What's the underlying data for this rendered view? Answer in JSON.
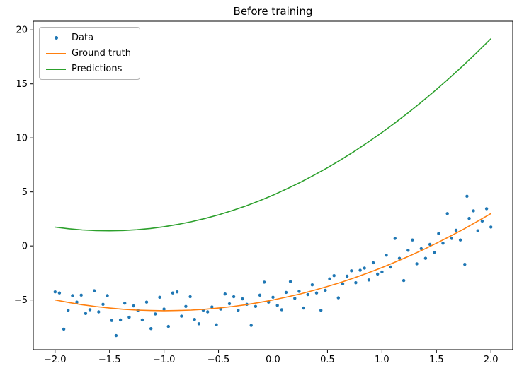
{
  "chart_data": {
    "type": "scatter",
    "title": "Before training",
    "xlabel": "",
    "ylabel": "",
    "xlim": [
      -2.2,
      2.2
    ],
    "ylim": [
      -9.6,
      20.8
    ],
    "grid": false,
    "legend_position": "upper left",
    "xticks": {
      "values": [
        -2.0,
        -1.5,
        -1.0,
        -0.5,
        0.0,
        0.5,
        1.0,
        1.5,
        2.0
      ],
      "labels": [
        "−2.0",
        "−1.5",
        "−1.0",
        "−0.5",
        "0.0",
        "0.5",
        "1.0",
        "1.5",
        "2.0"
      ]
    },
    "yticks": {
      "values": [
        -5,
        0,
        5,
        10,
        15,
        20
      ],
      "labels": [
        "−5",
        "0",
        "5",
        "10",
        "15",
        "20"
      ]
    },
    "series": [
      {
        "name": "Data",
        "type": "scatter",
        "color": "#1f77b4",
        "points": [
          [
            -2.0,
            -4.25
          ],
          [
            -1.96,
            -4.35
          ],
          [
            -1.92,
            -7.7
          ],
          [
            -1.88,
            -5.95
          ],
          [
            -1.84,
            -4.6
          ],
          [
            -1.8,
            -5.2
          ],
          [
            -1.76,
            -4.55
          ],
          [
            -1.72,
            -6.25
          ],
          [
            -1.68,
            -5.9
          ],
          [
            -1.64,
            -4.15
          ],
          [
            -1.6,
            -6.1
          ],
          [
            -1.56,
            -5.4
          ],
          [
            -1.52,
            -4.6
          ],
          [
            -1.48,
            -6.9
          ],
          [
            -1.44,
            -8.3
          ],
          [
            -1.4,
            -6.85
          ],
          [
            -1.36,
            -5.3
          ],
          [
            -1.32,
            -6.6
          ],
          [
            -1.28,
            -5.55
          ],
          [
            -1.24,
            -5.95
          ],
          [
            -1.2,
            -6.85
          ],
          [
            -1.16,
            -5.2
          ],
          [
            -1.12,
            -7.65
          ],
          [
            -1.08,
            -6.3
          ],
          [
            -1.04,
            -4.75
          ],
          [
            -1.0,
            -5.85
          ],
          [
            -0.96,
            -7.45
          ],
          [
            -0.92,
            -4.35
          ],
          [
            -0.88,
            -4.25
          ],
          [
            -0.84,
            -6.5
          ],
          [
            -0.8,
            -5.6
          ],
          [
            -0.76,
            -4.7
          ],
          [
            -0.72,
            -6.8
          ],
          [
            -0.68,
            -7.2
          ],
          [
            -0.64,
            -5.95
          ],
          [
            -0.6,
            -6.1
          ],
          [
            -0.56,
            -5.65
          ],
          [
            -0.52,
            -7.3
          ],
          [
            -0.48,
            -5.85
          ],
          [
            -0.44,
            -4.45
          ],
          [
            -0.4,
            -5.35
          ],
          [
            -0.36,
            -4.7
          ],
          [
            -0.32,
            -5.95
          ],
          [
            -0.28,
            -4.9
          ],
          [
            -0.24,
            -5.4
          ],
          [
            -0.2,
            -7.35
          ],
          [
            -0.16,
            -5.6
          ],
          [
            -0.12,
            -4.55
          ],
          [
            -0.08,
            -3.35
          ],
          [
            -0.04,
            -5.2
          ],
          [
            0.0,
            -4.75
          ],
          [
            0.04,
            -5.5
          ],
          [
            0.08,
            -5.9
          ],
          [
            0.12,
            -4.3
          ],
          [
            0.16,
            -3.3
          ],
          [
            0.2,
            -4.85
          ],
          [
            0.24,
            -4.2
          ],
          [
            0.28,
            -5.75
          ],
          [
            0.32,
            -4.5
          ],
          [
            0.36,
            -3.6
          ],
          [
            0.4,
            -4.35
          ],
          [
            0.44,
            -5.95
          ],
          [
            0.48,
            -4.1
          ],
          [
            0.52,
            -3.05
          ],
          [
            0.56,
            -2.75
          ],
          [
            0.6,
            -4.8
          ],
          [
            0.64,
            -3.5
          ],
          [
            0.68,
            -2.8
          ],
          [
            0.72,
            -2.3
          ],
          [
            0.76,
            -3.4
          ],
          [
            0.8,
            -2.25
          ],
          [
            0.84,
            -2.05
          ],
          [
            0.88,
            -3.15
          ],
          [
            0.92,
            -1.55
          ],
          [
            0.96,
            -2.6
          ],
          [
            1.0,
            -2.4
          ],
          [
            1.04,
            -0.85
          ],
          [
            1.08,
            -1.95
          ],
          [
            1.12,
            0.7
          ],
          [
            1.16,
            -1.15
          ],
          [
            1.2,
            -3.2
          ],
          [
            1.24,
            -0.4
          ],
          [
            1.28,
            0.55
          ],
          [
            1.32,
            -1.65
          ],
          [
            1.36,
            -0.25
          ],
          [
            1.4,
            -1.15
          ],
          [
            1.44,
            0.15
          ],
          [
            1.48,
            -0.6
          ],
          [
            1.52,
            1.15
          ],
          [
            1.56,
            0.25
          ],
          [
            1.6,
            3.0
          ],
          [
            1.64,
            0.7
          ],
          [
            1.68,
            1.45
          ],
          [
            1.72,
            0.55
          ],
          [
            1.76,
            -1.7
          ],
          [
            1.78,
            4.6
          ],
          [
            1.8,
            2.55
          ],
          [
            1.84,
            3.25
          ],
          [
            1.88,
            1.4
          ],
          [
            1.92,
            2.3
          ],
          [
            1.96,
            3.45
          ],
          [
            2.0,
            1.75
          ]
        ]
      },
      {
        "name": "Ground truth",
        "type": "line",
        "color": "#ff7f0e",
        "points": [
          [
            -2.0,
            -5.0
          ],
          [
            -1.875,
            -5.23
          ],
          [
            -1.75,
            -5.44
          ],
          [
            -1.625,
            -5.61
          ],
          [
            -1.5,
            -5.75
          ],
          [
            -1.375,
            -5.86
          ],
          [
            -1.25,
            -5.94
          ],
          [
            -1.125,
            -5.98
          ],
          [
            -1.0,
            -6.0
          ],
          [
            -0.875,
            -5.98
          ],
          [
            -0.75,
            -5.94
          ],
          [
            -0.625,
            -5.86
          ],
          [
            -0.5,
            -5.75
          ],
          [
            -0.375,
            -5.61
          ],
          [
            -0.25,
            -5.44
          ],
          [
            -0.125,
            -5.23
          ],
          [
            0.0,
            -5.0
          ],
          [
            0.125,
            -4.73
          ],
          [
            0.25,
            -4.44
          ],
          [
            0.375,
            -4.11
          ],
          [
            0.5,
            -3.75
          ],
          [
            0.625,
            -3.36
          ],
          [
            0.75,
            -2.94
          ],
          [
            0.875,
            -2.48
          ],
          [
            1.0,
            -2.0
          ],
          [
            1.125,
            -1.48
          ],
          [
            1.25,
            -0.94
          ],
          [
            1.375,
            -0.36
          ],
          [
            1.5,
            0.25
          ],
          [
            1.625,
            0.89
          ],
          [
            1.75,
            1.56
          ],
          [
            1.875,
            2.27
          ],
          [
            2.0,
            3.0
          ]
        ]
      },
      {
        "name": "Predictions",
        "type": "line",
        "color": "#2ca02c",
        "points": [
          [
            -2.0,
            1.74
          ],
          [
            -1.875,
            1.59
          ],
          [
            -1.75,
            1.48
          ],
          [
            -1.625,
            1.42
          ],
          [
            -1.5,
            1.4
          ],
          [
            -1.375,
            1.43
          ],
          [
            -1.25,
            1.5
          ],
          [
            -1.125,
            1.62
          ],
          [
            -1.0,
            1.78
          ],
          [
            -0.875,
            1.99
          ],
          [
            -0.75,
            2.24
          ],
          [
            -0.625,
            2.54
          ],
          [
            -0.5,
            2.88
          ],
          [
            -0.375,
            3.27
          ],
          [
            -0.25,
            3.7
          ],
          [
            -0.125,
            4.18
          ],
          [
            0.0,
            4.7
          ],
          [
            0.125,
            5.27
          ],
          [
            0.25,
            5.88
          ],
          [
            0.375,
            6.54
          ],
          [
            0.5,
            7.24
          ],
          [
            0.625,
            7.99
          ],
          [
            0.75,
            8.78
          ],
          [
            0.875,
            9.62
          ],
          [
            1.0,
            10.5
          ],
          [
            1.125,
            11.43
          ],
          [
            1.25,
            12.4
          ],
          [
            1.375,
            13.42
          ],
          [
            1.5,
            14.48
          ],
          [
            1.625,
            15.59
          ],
          [
            1.75,
            16.74
          ],
          [
            1.875,
            17.94
          ],
          [
            2.0,
            19.18
          ]
        ]
      }
    ]
  }
}
